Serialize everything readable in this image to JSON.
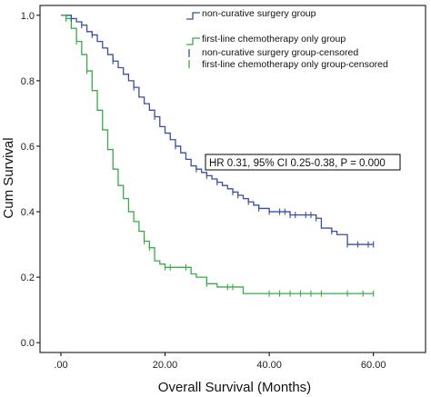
{
  "chart_data": {
    "type": "line",
    "title": "",
    "xlabel": "Overall Survival (Months)",
    "ylabel": "Cum Survival",
    "xlim": [
      -4,
      70
    ],
    "ylim": [
      -0.03,
      1.03
    ],
    "x_ticks": [
      0,
      20,
      40,
      60
    ],
    "x_tick_labels": [
      ".00",
      "20.00",
      "40.00",
      "60.00"
    ],
    "y_ticks": [
      0.0,
      0.2,
      0.4,
      0.6,
      0.8,
      1.0
    ],
    "y_tick_labels": [
      "0.0",
      "0.2",
      "0.4",
      "0.6",
      "0.8",
      "1.0"
    ],
    "grid": false,
    "legend_position": "top-right",
    "annotation": "HR 0.31, 95% CI 0.25-0.38, P = 0.000",
    "series": [
      {
        "name": "non-curative surgery group",
        "color": "#3a4fa0",
        "censored_label": "non-curative surgery group-censored",
        "x": [
          0,
          1,
          2,
          3,
          4,
          5,
          6,
          7,
          8,
          9,
          10,
          11,
          12,
          13,
          14,
          15,
          16,
          17,
          18,
          19,
          20,
          21,
          22,
          23,
          24,
          25,
          26,
          27,
          28,
          29,
          30,
          31,
          32,
          33,
          34,
          35,
          36,
          37,
          38,
          39,
          40,
          42,
          44,
          46,
          48,
          49,
          50,
          51,
          52,
          53,
          54,
          55,
          56,
          58,
          60
        ],
        "y": [
          1.0,
          1.0,
          0.99,
          0.98,
          0.97,
          0.95,
          0.94,
          0.92,
          0.9,
          0.88,
          0.86,
          0.84,
          0.82,
          0.8,
          0.78,
          0.75,
          0.73,
          0.71,
          0.69,
          0.66,
          0.64,
          0.62,
          0.6,
          0.58,
          0.56,
          0.54,
          0.53,
          0.52,
          0.51,
          0.5,
          0.49,
          0.48,
          0.47,
          0.46,
          0.45,
          0.44,
          0.43,
          0.42,
          0.41,
          0.41,
          0.4,
          0.4,
          0.39,
          0.39,
          0.39,
          0.38,
          0.35,
          0.35,
          0.34,
          0.33,
          0.33,
          0.3,
          0.3,
          0.3,
          0.3
        ],
        "censored_x": [
          2,
          4,
          6,
          10,
          14,
          18,
          22,
          26,
          28,
          30,
          33,
          34,
          36,
          38,
          40,
          42,
          43,
          44,
          45,
          47,
          48,
          49,
          52,
          55,
          57,
          59,
          60
        ]
      },
      {
        "name": "first-line chemotherapy only group",
        "color": "#3aaa4a",
        "censored_label": "first-line chemotherapy only group-censored",
        "x": [
          0,
          1,
          2,
          3,
          4,
          5,
          6,
          7,
          8,
          9,
          10,
          11,
          12,
          13,
          14,
          15,
          16,
          17,
          18,
          19,
          20,
          21,
          22,
          23,
          24,
          25,
          26,
          28,
          30,
          32,
          34,
          35,
          36,
          40,
          45,
          50,
          55,
          60
        ],
        "y": [
          1.0,
          0.99,
          0.96,
          0.92,
          0.88,
          0.83,
          0.77,
          0.71,
          0.65,
          0.59,
          0.53,
          0.48,
          0.44,
          0.4,
          0.37,
          0.34,
          0.31,
          0.29,
          0.25,
          0.24,
          0.23,
          0.23,
          0.23,
          0.23,
          0.23,
          0.21,
          0.2,
          0.18,
          0.17,
          0.17,
          0.17,
          0.15,
          0.15,
          0.15,
          0.15,
          0.15,
          0.15,
          0.15
        ],
        "censored_x": [
          1,
          3,
          5,
          16,
          17,
          20,
          21,
          24,
          28,
          32,
          33,
          40,
          42,
          44,
          46,
          48,
          50,
          55,
          58,
          60
        ]
      }
    ]
  }
}
